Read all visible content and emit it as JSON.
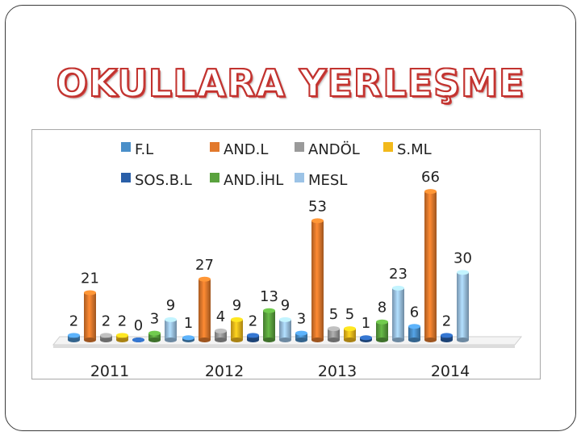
{
  "title": "OKULLARA YERLEŞME",
  "chart_data": {
    "type": "bar",
    "categories": [
      "2011",
      "2012",
      "2013",
      "2014"
    ],
    "series": [
      {
        "name": "F.L",
        "color": "#4a8fc9",
        "values": [
          2,
          1,
          3,
          6
        ]
      },
      {
        "name": "AND.L",
        "color": "#e2792c",
        "values": [
          21,
          27,
          53,
          66
        ]
      },
      {
        "name": "ANDÖL",
        "color": "#9a9a9a",
        "values": [
          2,
          4,
          5,
          null
        ]
      },
      {
        "name": "S.ML",
        "color": "#f2b91b",
        "values": [
          2,
          9,
          5,
          null
        ]
      },
      {
        "name": "SOS.B.L",
        "color": "#2a5fa8",
        "values": [
          0,
          2,
          1,
          2
        ]
      },
      {
        "name": "AND.İHL",
        "color": "#5aa23e",
        "values": [
          3,
          13,
          8,
          null
        ]
      },
      {
        "name": "MESL",
        "color": "#9cc3e6",
        "values": [
          9,
          9,
          23,
          30
        ]
      }
    ],
    "legend": "top"
  }
}
